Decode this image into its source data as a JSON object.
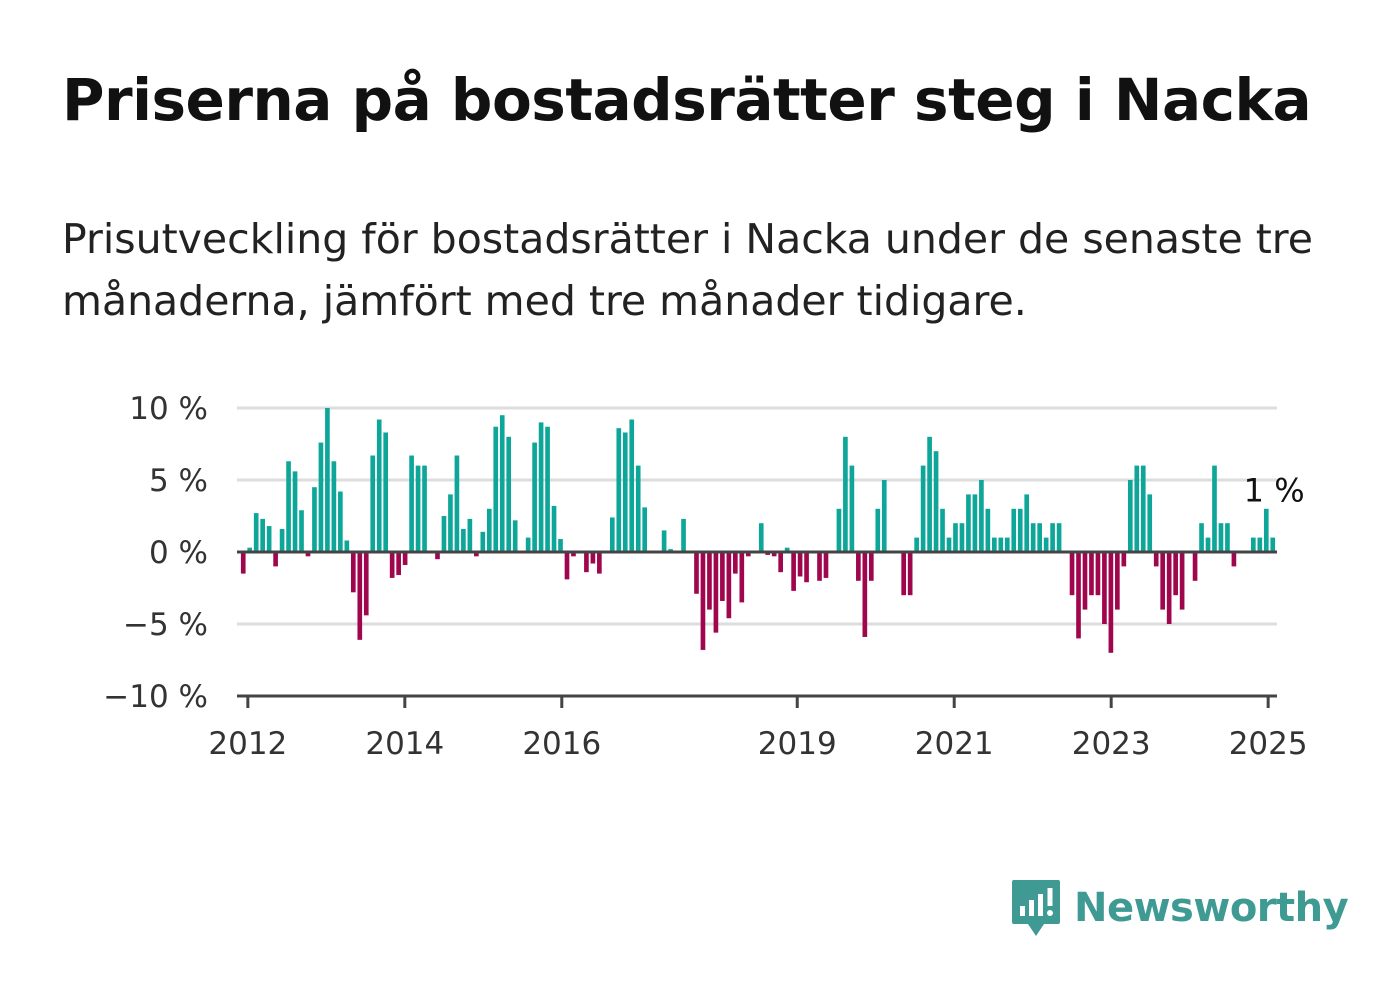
{
  "title": "Priserna på bostadsrätter steg i Nacka",
  "subtitle": "Prisutveckling för bostadsrätter i Nacka under de senaste tre månaderna, jämfört med tre månader tidigare.",
  "brand": {
    "name": "Newsworthy",
    "color": "#3e9a92",
    "icon": "bar-chart-speech-bubble-icon"
  },
  "colors": {
    "positive": "#0ea699",
    "negative": "#a0064e",
    "grid": "#dddddd",
    "axis": "#444444"
  },
  "chart_data": {
    "type": "bar",
    "ylim": [
      -10,
      10
    ],
    "yticks": [
      10,
      5,
      0,
      -5,
      -10
    ],
    "ytick_labels": [
      "10 %",
      "5 %",
      "0 %",
      "−5 %",
      "−10 %"
    ],
    "xticks": [
      2012,
      2014,
      2016,
      2019,
      2021,
      2023,
      2025
    ],
    "xtick_labels": [
      "2012",
      "2014",
      "2016",
      "2019",
      "2021",
      "2023",
      "2025"
    ],
    "x_start": 2011.9,
    "x_end": 2025.1,
    "annotation": {
      "text": "1 %",
      "x": 2025.0,
      "y": 1
    },
    "values": [
      -1.5,
      0.3,
      2.7,
      2.3,
      1.8,
      -1.0,
      1.6,
      6.3,
      5.6,
      2.9,
      -0.3,
      4.5,
      7.6,
      10.0,
      6.3,
      4.2,
      0.8,
      -2.8,
      -6.1,
      -4.4,
      6.7,
      9.2,
      8.3,
      -1.8,
      -1.6,
      -0.9,
      6.7,
      6.0,
      6.0,
      0.0,
      -0.5,
      2.5,
      4.0,
      6.7,
      1.6,
      2.3,
      -0.3,
      1.4,
      3.0,
      8.7,
      9.5,
      8.0,
      2.2,
      0.0,
      1.0,
      7.6,
      9.0,
      8.7,
      3.2,
      0.9,
      -1.9,
      -0.3,
      0.0,
      -1.4,
      -0.8,
      -1.5,
      0.0,
      2.4,
      8.6,
      8.3,
      9.2,
      6.0,
      3.1,
      0.0,
      0.1,
      1.5,
      0.2,
      0.0,
      2.3,
      0.0,
      -2.9,
      -6.8,
      -4.0,
      -5.6,
      -3.4,
      -4.6,
      -1.5,
      -3.5,
      -0.3,
      0.0,
      2.0,
      -0.2,
      -0.3,
      -1.4,
      0.3,
      -2.7,
      -1.7,
      -2.1,
      0.0,
      -2.0,
      -1.8,
      0.0,
      3.0,
      8.0,
      6.0,
      -2.0,
      -5.9,
      -2.0,
      3.0,
      5.0,
      0.0,
      0.0,
      -3.0,
      -3.0,
      1.0,
      6.0,
      8.0,
      7.0,
      3.0,
      1.0,
      2.0,
      2.0,
      4.0,
      4.0,
      5.0,
      3.0,
      1.0,
      1.0,
      1.0,
      3.0,
      3.0,
      4.0,
      2.0,
      2.0,
      1.0,
      2.0,
      2.0,
      0.0,
      -3.0,
      -6.0,
      -4.0,
      -3.0,
      -3.0,
      -5.0,
      -7.0,
      -4.0,
      -1.0,
      5.0,
      6.0,
      6.0,
      4.0,
      -1.0,
      -4.0,
      -5.0,
      -3.0,
      -4.0,
      0.0,
      -2.0,
      2.0,
      1.0,
      6.0,
      2.0,
      2.0,
      -1.0,
      0.0,
      0.0,
      1.0,
      1.0,
      3.0,
      1.0
    ]
  }
}
